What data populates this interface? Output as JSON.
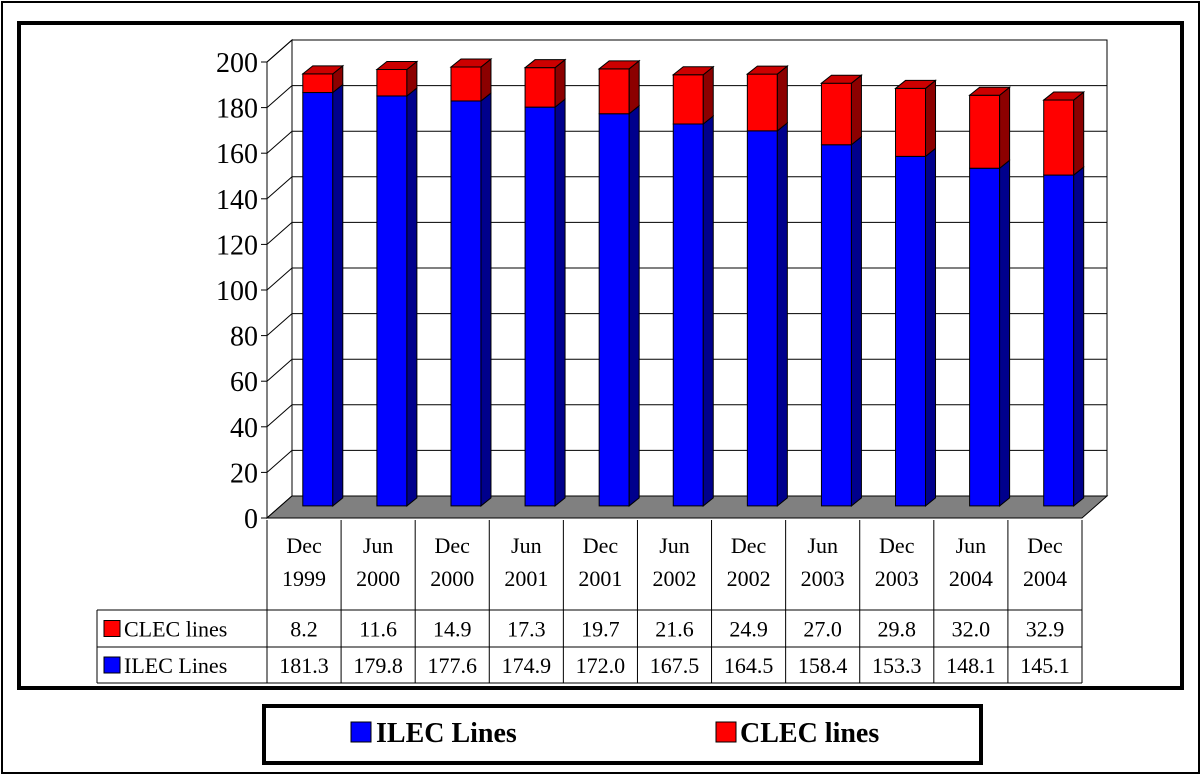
{
  "chart_data": {
    "type": "bar",
    "stacked": true,
    "categories": [
      [
        "Dec",
        "1999"
      ],
      [
        "Jun",
        "2000"
      ],
      [
        "Dec",
        "2000"
      ],
      [
        "Jun",
        "2001"
      ],
      [
        "Dec",
        "2001"
      ],
      [
        "Jun",
        "2002"
      ],
      [
        "Dec",
        "2002"
      ],
      [
        "Jun",
        "2003"
      ],
      [
        "Dec",
        "2003"
      ],
      [
        "Jun",
        "2004"
      ],
      [
        "Dec",
        "2004"
      ]
    ],
    "series": [
      {
        "name": "ILEC Lines",
        "color": "#0000ff",
        "values": [
          181.3,
          179.8,
          177.6,
          174.9,
          172.0,
          167.5,
          164.5,
          158.4,
          153.3,
          148.1,
          145.1
        ],
        "labels": [
          "181.3",
          "179.8",
          "177.6",
          "174.9",
          "172.0",
          "167.5",
          "164.5",
          "158.4",
          "153.3",
          "148.1",
          "145.1"
        ]
      },
      {
        "name": "CLEC lines",
        "color": "#ff0000",
        "values": [
          8.2,
          11.6,
          14.9,
          17.3,
          19.7,
          21.6,
          24.9,
          27.0,
          29.8,
          32.0,
          32.9
        ],
        "labels": [
          "8.2",
          "11.6",
          "14.9",
          "17.3",
          "19.7",
          "21.6",
          "24.9",
          "27.0",
          "29.8",
          "32.0",
          "32.9"
        ]
      }
    ],
    "title": "",
    "xlabel": "",
    "ylabel": "",
    "ylim": [
      0,
      200
    ],
    "yticks": [
      0,
      20,
      40,
      60,
      80,
      100,
      120,
      140,
      160,
      180,
      200
    ],
    "grid": true,
    "data_table": true,
    "legend_position": "bottom"
  }
}
